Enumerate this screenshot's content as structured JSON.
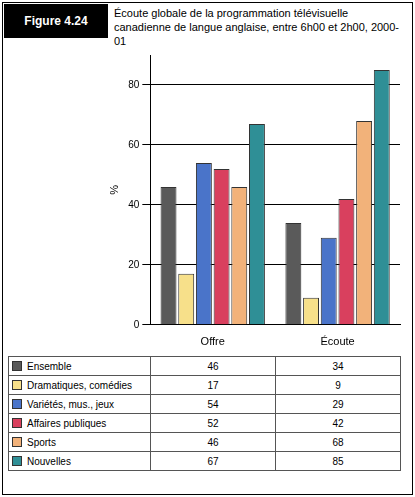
{
  "chart_data": {
    "type": "bar",
    "figure_label": "Figure 4.24",
    "title": "Écoute globale de la programmation télévisuelle canadienne de langue anglaise, entre 6h00 et 2h00, 2000-01",
    "y_label": "%",
    "categories": [
      "Offre",
      "Écoute"
    ],
    "series": [
      {
        "name": "Ensemble",
        "color": "#5a5a5a",
        "values": [
          46,
          34
        ]
      },
      {
        "name": "Dramatiques, comédies",
        "color": "#f7e08a",
        "values": [
          17,
          9
        ]
      },
      {
        "name": "Variétés, mus., jeux",
        "color": "#4a74c9",
        "values": [
          54,
          29
        ]
      },
      {
        "name": "Affaires publiques",
        "color": "#d9405e",
        "values": [
          52,
          42
        ]
      },
      {
        "name": "Sports",
        "color": "#f2b27a",
        "values": [
          46,
          68
        ]
      },
      {
        "name": "Nouvelles",
        "color": "#2f8f96",
        "values": [
          67,
          85
        ]
      }
    ],
    "ylim": [
      0,
      90
    ],
    "yticks": [
      0,
      20,
      40,
      60,
      80
    ],
    "grid": true
  }
}
